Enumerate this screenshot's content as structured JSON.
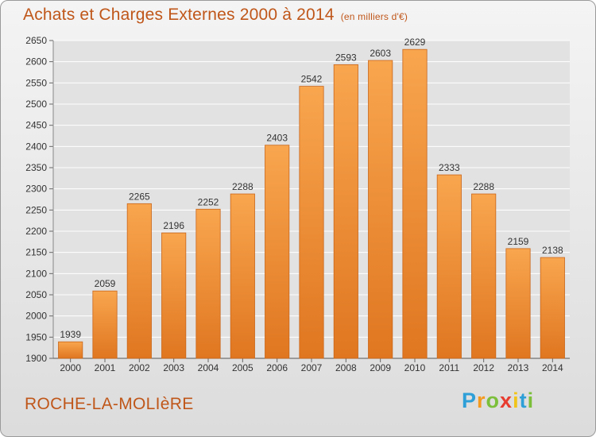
{
  "header": {
    "title": "Achats et Charges Externes 2000 à 2014",
    "unit": "(en milliers d'€)"
  },
  "footer": {
    "commune": "ROCHE-LA-MOLIèRE",
    "logo_letters": [
      "P",
      "r",
      "o",
      "x",
      "i",
      "t",
      "i"
    ],
    "logo_colors": [
      "#2f9fd8",
      "#f39a1f",
      "#7bbf3a",
      "#e73c2f",
      "#f0c419",
      "#2f9fd8",
      "#7bbf3a"
    ]
  },
  "colors": {
    "bar_top": "#f8a64f",
    "bar_bottom": "#e07620",
    "bar_edge": "#c9661a",
    "grid": "#ffffff",
    "plot_bg": "#e2e2e2"
  },
  "chart_data": {
    "type": "bar",
    "title": "Achats et Charges Externes 2000 à 2014",
    "xlabel": "",
    "ylabel": "",
    "categories": [
      "2000",
      "2001",
      "2002",
      "2003",
      "2004",
      "2005",
      "2006",
      "2007",
      "2008",
      "2009",
      "2010",
      "2011",
      "2012",
      "2013",
      "2014"
    ],
    "values": [
      1939,
      2059,
      2265,
      2196,
      2252,
      2288,
      2403,
      2542,
      2593,
      2603,
      2629,
      2333,
      2288,
      2159,
      2138
    ],
    "ylim": [
      1900,
      2650
    ],
    "yticks": [
      1900,
      1950,
      2000,
      2050,
      2100,
      2150,
      2200,
      2250,
      2300,
      2350,
      2400,
      2450,
      2500,
      2550,
      2600,
      2650
    ],
    "grid": true,
    "legend": "none"
  }
}
